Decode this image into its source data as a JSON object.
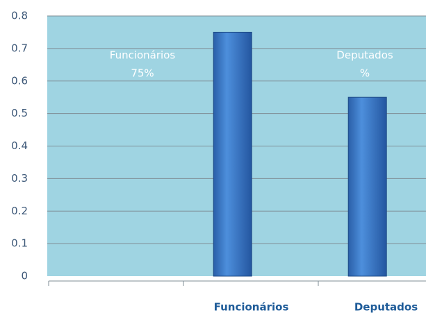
{
  "chart_data": {
    "type": "bar",
    "categories": [
      null,
      "Funcionários",
      "Deputados"
    ],
    "values": [
      null,
      0.75,
      0.55
    ],
    "value_labels": [
      null,
      [
        "Funcionários",
        "75%"
      ],
      [
        "Deputados",
        "%"
      ]
    ],
    "color": "#3a78c8",
    "ylim": [
      0,
      0.8
    ],
    "yticks": [
      0,
      0.1,
      0.2,
      0.3,
      0.4,
      0.5,
      0.6,
      0.7,
      0.8
    ],
    "grid": true
  }
}
